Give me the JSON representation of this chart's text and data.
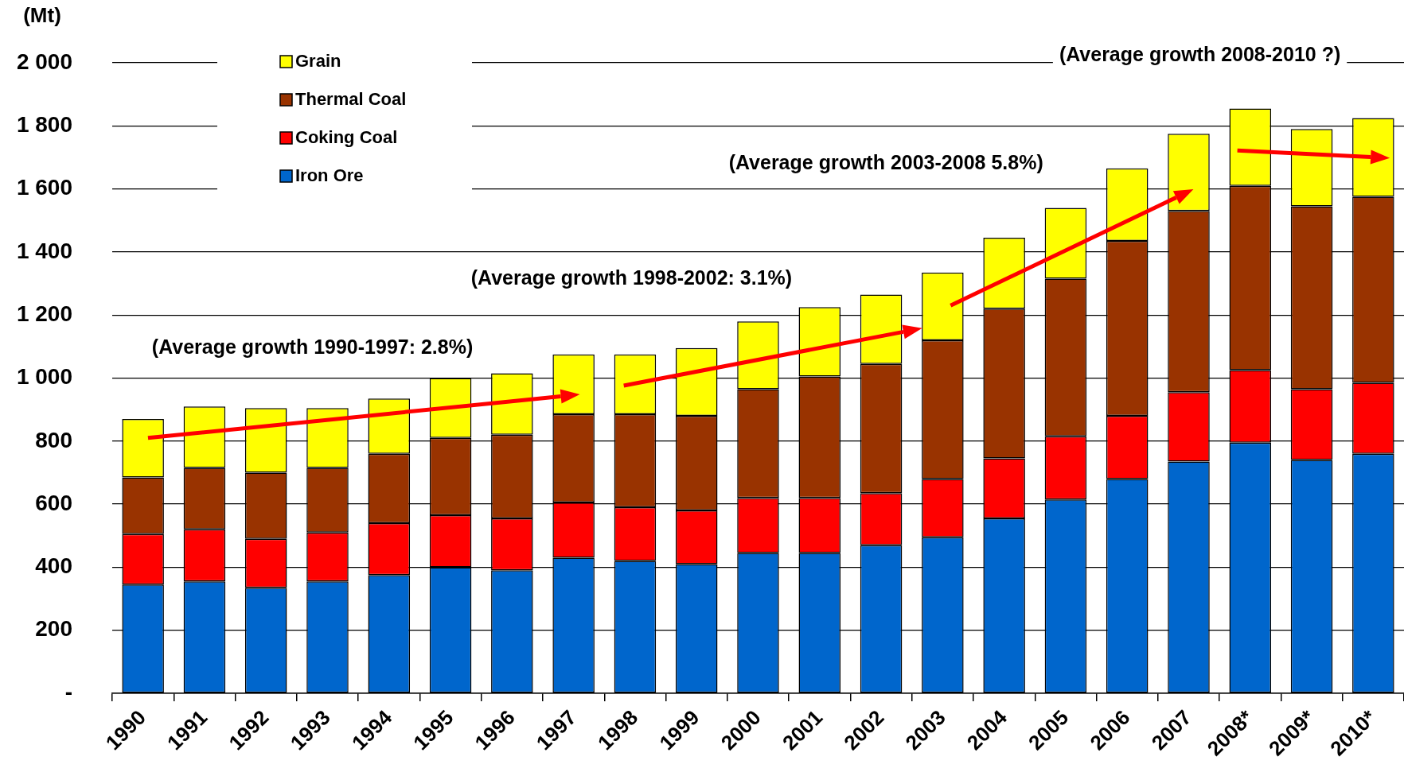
{
  "chart_data": {
    "type": "bar",
    "stacked": true,
    "ylabel": "(Mt)",
    "categories": [
      "1990",
      "1991",
      "1992",
      "1993",
      "1994",
      "1995",
      "1996",
      "1997",
      "1998",
      "1999",
      "2000",
      "2001",
      "2002",
      "2003",
      "2004",
      "2005",
      "2006",
      "2007",
      "2008*",
      "2009*",
      "2010*"
    ],
    "series": [
      {
        "name": "Iron Ore",
        "color": "#0066cc",
        "values": [
          345,
          355,
          335,
          355,
          375,
          400,
          390,
          430,
          420,
          410,
          445,
          445,
          470,
          495,
          555,
          615,
          680,
          735,
          795,
          740,
          760
        ]
      },
      {
        "name": "Coking Coal",
        "color": "#ff0000",
        "values": [
          160,
          165,
          155,
          155,
          165,
          165,
          165,
          175,
          170,
          170,
          175,
          175,
          165,
          185,
          190,
          200,
          200,
          220,
          230,
          225,
          225
        ]
      },
      {
        "name": "Thermal Coal",
        "color": "#993300",
        "values": [
          180,
          195,
          210,
          205,
          220,
          245,
          265,
          280,
          295,
          300,
          345,
          385,
          410,
          440,
          475,
          500,
          555,
          575,
          585,
          580,
          590
        ]
      },
      {
        "name": "Grain",
        "color": "#ffff00",
        "values": [
          185,
          195,
          205,
          190,
          175,
          190,
          195,
          190,
          190,
          215,
          215,
          220,
          220,
          215,
          225,
          225,
          230,
          245,
          245,
          245,
          250
        ]
      }
    ],
    "ylim": [
      0,
      2000
    ],
    "yticks": [
      {
        "value": 0,
        "label": "-"
      },
      200,
      400,
      600,
      800,
      {
        "value": 1000,
        "label": "1 000"
      },
      {
        "value": 1200,
        "label": "1 200"
      },
      {
        "value": 1400,
        "label": "1 400"
      },
      {
        "value": 1600,
        "label": "1 600"
      },
      {
        "value": 1800,
        "label": "1 800"
      },
      {
        "value": 2000,
        "label": "2 000"
      }
    ],
    "grid": "y",
    "legend": "top left",
    "annotations": [
      "(Average growth 1990-1997: 2.8%)",
      "(Average growth 1998-2002: 3.1%)",
      "(Average growth 2003-2008 5.8%)",
      "(Average growth 2008-2010 ?)"
    ]
  }
}
